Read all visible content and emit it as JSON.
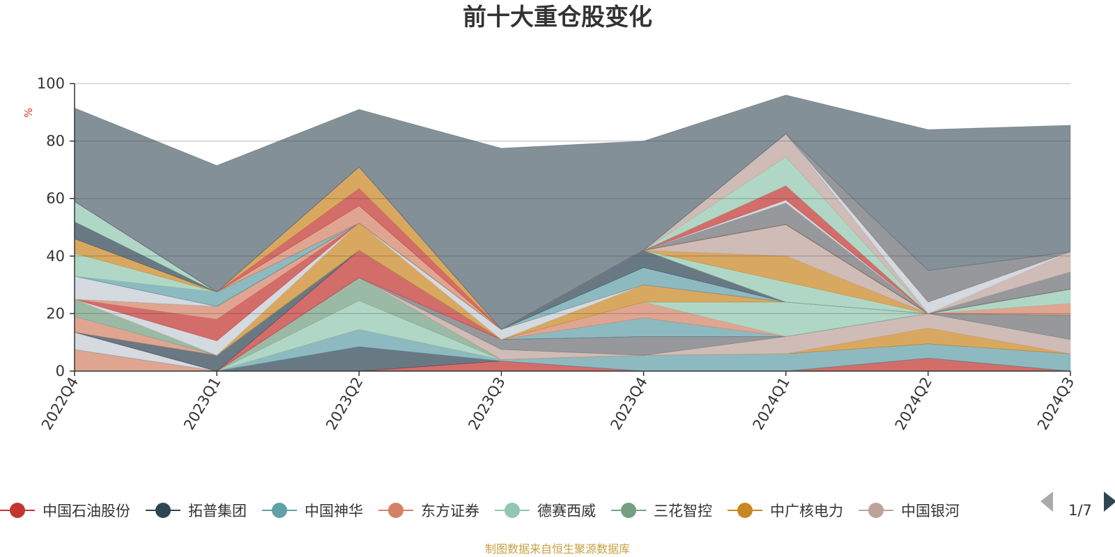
{
  "chart_data": {
    "type": "area",
    "stacked": true,
    "title": "前十大重仓股变化",
    "ylabel": "%",
    "ylim": [
      0,
      100
    ],
    "y_ticks": [
      "0",
      "20",
      "40",
      "60",
      "80",
      "100"
    ],
    "categories": [
      "2022Q4",
      "2023Q1",
      "2023Q2",
      "2023Q3",
      "2023Q4",
      "2024Q1",
      "2024Q2",
      "2024Q3"
    ],
    "series": [
      {
        "name": "中国石油股份",
        "color": "#c23531",
        "values": [
          0,
          0,
          0,
          3.5,
          0,
          0,
          4.5,
          0
        ]
      },
      {
        "name": "拓普集团",
        "color": "#2f4554",
        "values": [
          0,
          0,
          8.5,
          0,
          0,
          0,
          0,
          0
        ]
      },
      {
        "name": "中国神华",
        "color": "#61a0a8",
        "values": [
          0,
          0,
          6,
          0.5,
          5.5,
          6,
          5,
          6
        ]
      },
      {
        "name": "东方证券",
        "color": "#d48265",
        "values": [
          7.5,
          0,
          0,
          0,
          0,
          0,
          0,
          0
        ]
      },
      {
        "name": "德赛西威",
        "color": "#91c7ae",
        "values": [
          0,
          0,
          10,
          0,
          0,
          0,
          0,
          0
        ]
      },
      {
        "name": "三花智控",
        "color": "#749f83",
        "values": [
          0,
          0,
          8,
          0,
          0,
          0,
          0,
          0
        ]
      },
      {
        "name": "中广核电力",
        "color": "#ca8622",
        "values": [
          0,
          0,
          0,
          0,
          0,
          0,
          5.5,
          0
        ]
      },
      {
        "name": "中国银河",
        "color": "#bda29a",
        "values": [
          0,
          0,
          0,
          3.5,
          0,
          6,
          5,
          5
        ]
      },
      {
        "name": "",
        "color": "#6e7074",
        "values": [
          0,
          0,
          0,
          3.5,
          6.5,
          0,
          0,
          8.5
        ]
      },
      {
        "name": "",
        "color": "#546570",
        "values": [
          0,
          0,
          0,
          0,
          0,
          0,
          0,
          0
        ]
      },
      {
        "name": "",
        "color": "#c4ccd3",
        "values": [
          6,
          0,
          0,
          0,
          0,
          0,
          0,
          0
        ]
      },
      {
        "name": "",
        "color": "#c23531",
        "values": [
          0,
          0,
          9.5,
          0,
          0,
          0,
          0,
          0
        ]
      },
      {
        "name": "",
        "color": "#2f4554",
        "values": [
          0,
          5.5,
          0,
          0,
          0,
          0,
          0,
          0
        ]
      },
      {
        "name": "",
        "color": "#61a0a8",
        "values": [
          0,
          0,
          0,
          0,
          6.5,
          0,
          0,
          0
        ]
      },
      {
        "name": "",
        "color": "#d48265",
        "values": [
          5.5,
          0,
          0,
          0,
          5.5,
          0,
          0,
          4
        ]
      },
      {
        "name": "",
        "color": "#91c7ae",
        "values": [
          0,
          0,
          0,
          0,
          0,
          12,
          0,
          5
        ]
      },
      {
        "name": "",
        "color": "#749f83",
        "values": [
          6,
          0,
          0,
          0,
          0,
          0,
          0,
          0
        ]
      },
      {
        "name": "",
        "color": "#ca8622",
        "values": [
          0,
          0,
          9.5,
          0,
          6,
          0,
          0,
          0
        ]
      },
      {
        "name": "",
        "color": "#bda29a",
        "values": [
          0,
          0,
          0,
          0,
          0,
          0,
          0,
          0
        ]
      },
      {
        "name": "",
        "color": "#c4ccd3",
        "values": [
          0,
          5,
          0,
          3.5,
          0,
          0,
          0,
          0
        ]
      },
      {
        "name": "",
        "color": "#c23531",
        "values": [
          0,
          7.5,
          0,
          0,
          0,
          0,
          0,
          0
        ]
      },
      {
        "name": "",
        "color": "#d48265",
        "values": [
          0,
          4.5,
          0,
          0,
          0,
          0,
          0,
          0
        ]
      },
      {
        "name": "",
        "color": "#61a0a8",
        "values": [
          0,
          0,
          0,
          0,
          6,
          0,
          0,
          0
        ]
      },
      {
        "name": "",
        "color": "#2f4554",
        "values": [
          0,
          0,
          0,
          0,
          6,
          0,
          0,
          0
        ]
      },
      {
        "name": "",
        "color": "#91c7ae",
        "values": [
          0,
          0,
          0,
          0,
          0,
          7,
          0,
          0
        ]
      },
      {
        "name": "",
        "color": "#ca8622",
        "values": [
          0,
          0,
          0,
          0,
          0,
          9,
          0,
          0
        ]
      },
      {
        "name": "",
        "color": "#bda29a",
        "values": [
          0,
          0,
          0,
          0,
          0,
          11,
          0,
          0
        ]
      },
      {
        "name": "",
        "color": "#c4ccd3",
        "values": [
          8,
          0,
          0,
          0,
          0,
          0,
          0,
          0
        ]
      },
      {
        "name": "",
        "color": "#2f4554",
        "values": [
          0,
          0,
          0,
          0,
          0,
          0,
          0,
          0
        ]
      },
      {
        "name": "",
        "color": "#61a0a8",
        "values": [
          0,
          5,
          0,
          0,
          0,
          0,
          0,
          0
        ]
      },
      {
        "name": "",
        "color": "#91c7ae",
        "values": [
          8,
          0,
          0,
          0,
          0,
          0,
          0,
          0
        ]
      },
      {
        "name": "",
        "color": "#ca8622",
        "values": [
          5,
          0,
          0,
          0,
          0,
          0,
          0,
          0
        ]
      },
      {
        "name": "",
        "color": "#2f4554",
        "values": [
          6,
          0,
          0,
          0,
          0,
          0,
          0,
          0
        ]
      },
      {
        "name": "",
        "color": "#91c7ae",
        "values": [
          7,
          0,
          0,
          0,
          0,
          0,
          0,
          0
        ]
      },
      {
        "name": "",
        "color": "#d48265",
        "values": [
          0,
          0,
          6,
          0,
          0,
          0,
          0,
          0
        ]
      },
      {
        "name": "",
        "color": "#c23531",
        "values": [
          0,
          0,
          6,
          0,
          0,
          0,
          0,
          0
        ]
      },
      {
        "name": "",
        "color": "#ca8622",
        "values": [
          0,
          0,
          7.5,
          0,
          0,
          0,
          0,
          0
        ]
      },
      {
        "name": "",
        "color": "#6e7074",
        "values": [
          0,
          0,
          0,
          0,
          0,
          7.5,
          0,
          0
        ]
      },
      {
        "name": "",
        "color": "#c4ccd3",
        "values": [
          0,
          0,
          0,
          0,
          0,
          1,
          0,
          0
        ]
      },
      {
        "name": "",
        "color": "#c23531",
        "values": [
          0,
          0,
          0,
          0,
          0,
          5,
          0,
          0
        ]
      },
      {
        "name": "",
        "color": "#91c7ae",
        "values": [
          0,
          0,
          0,
          0,
          0,
          10,
          0,
          0
        ]
      },
      {
        "name": "",
        "color": "#bda29a",
        "values": [
          0,
          0,
          0,
          0,
          0,
          8,
          0,
          0
        ]
      },
      {
        "name": "",
        "color": "#6e7074",
        "values": [
          0,
          0,
          0,
          0,
          0,
          0,
          0,
          6
        ]
      },
      {
        "name": "",
        "color": "#bda29a",
        "values": [
          0,
          0,
          0,
          0,
          0,
          0,
          0,
          7
        ]
      },
      {
        "name": "",
        "color": "#c4ccd3",
        "values": [
          0,
          0,
          0,
          0,
          0,
          0,
          4,
          0
        ]
      },
      {
        "name": "",
        "color": "#6e7074",
        "values": [
          0,
          0,
          0,
          0,
          0,
          0,
          11,
          0
        ]
      },
      {
        "name": "",
        "color": "#546570",
        "values": [
          32.5,
          44,
          20,
          63,
          38,
          13.5,
          49,
          44
        ]
      }
    ]
  },
  "legend": {
    "items": [
      {
        "name": "中国石油股份",
        "color": "#c23531"
      },
      {
        "name": "拓普集团",
        "color": "#2f4554"
      },
      {
        "name": "中国神华",
        "color": "#61a0a8"
      },
      {
        "name": "东方证券",
        "color": "#d48265"
      },
      {
        "name": "德赛西威",
        "color": "#91c7ae"
      },
      {
        "name": "三花智控",
        "color": "#749f83"
      },
      {
        "name": "中广核电力",
        "color": "#ca8622"
      },
      {
        "name": "中国银河",
        "color": "#bda29a"
      }
    ],
    "page": "1/7"
  },
  "source": "制图数据来自恒生聚源数据库",
  "colors": {
    "unit": "#e03030",
    "source": "#c8a040",
    "pager_active": "#2f4554",
    "pager_inactive": "#aaaaaa"
  }
}
